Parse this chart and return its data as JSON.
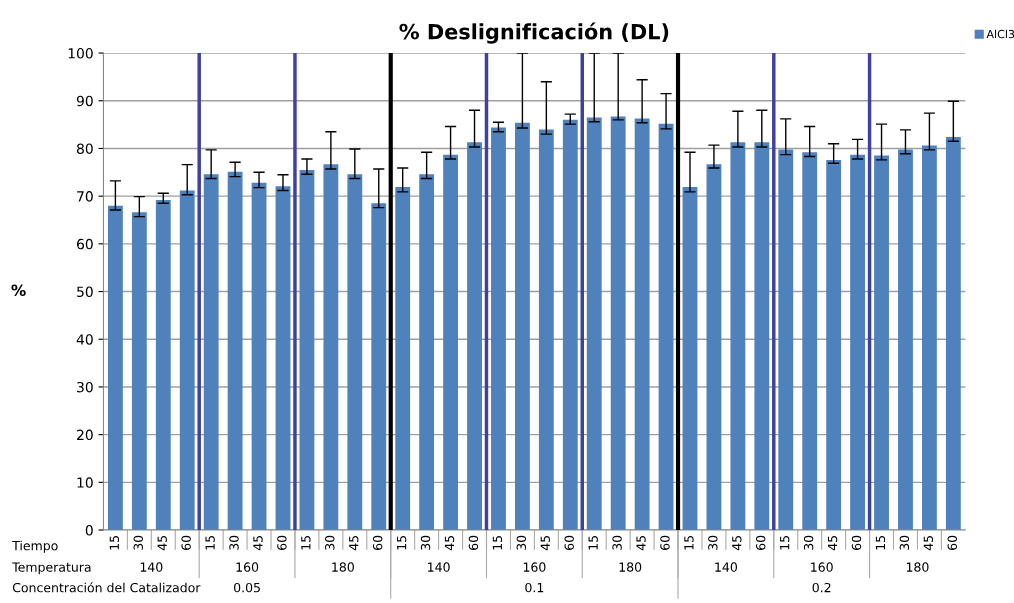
{
  "chart_data": {
    "type": "bar",
    "title": "% Deslignificación (DL)",
    "ylabel": "%",
    "categories": [
      "15",
      "30",
      "45",
      "60",
      "15",
      "30",
      "45",
      "60",
      "15",
      "30",
      "45",
      "60",
      "15",
      "30",
      "45",
      "60",
      "15",
      "30",
      "45",
      "60",
      "15",
      "30",
      "45",
      "60",
      "15",
      "30",
      "45",
      "60",
      "15",
      "30",
      "45",
      "60",
      "15",
      "30",
      "45",
      "60"
    ],
    "series": [
      {
        "name": "AlCl3",
        "color": "#4f81bd",
        "values": [
          68.0,
          66.6,
          69.2,
          71.2,
          74.6,
          75.1,
          72.8,
          72.1,
          75.5,
          76.7,
          74.6,
          68.5,
          71.9,
          74.6,
          78.7,
          81.3,
          84.4,
          85.4,
          84.0,
          86.0,
          86.5,
          86.7,
          86.3,
          85.2,
          71.9,
          76.7,
          81.3,
          81.3,
          79.8,
          79.2,
          77.6,
          78.7,
          78.5,
          79.8,
          80.6,
          82.4
        ],
        "errors": [
          [
            67.1,
            73.2
          ],
          [
            65.7,
            69.9
          ],
          [
            68.5,
            70.6
          ],
          [
            70.3,
            76.6
          ],
          [
            73.7,
            79.7
          ],
          [
            74.1,
            77.1
          ],
          [
            71.8,
            75.0
          ],
          [
            71.2,
            74.5
          ],
          [
            74.6,
            77.8
          ],
          [
            75.7,
            83.5
          ],
          [
            73.7,
            79.9
          ],
          [
            67.6,
            75.7
          ],
          [
            70.9,
            75.9
          ],
          [
            73.7,
            79.2
          ],
          [
            77.8,
            84.6
          ],
          [
            80.3,
            88.0
          ],
          [
            83.5,
            85.5
          ],
          [
            84.3,
            100
          ],
          [
            83.0,
            94.0
          ],
          [
            85.1,
            87.2
          ],
          [
            85.6,
            100
          ],
          [
            86.0,
            100
          ],
          [
            85.4,
            94.4
          ],
          [
            84.1,
            91.5
          ],
          [
            70.9,
            79.2
          ],
          [
            75.9,
            80.7
          ],
          [
            80.3,
            87.8
          ],
          [
            80.3,
            88.0
          ],
          [
            78.7,
            86.2
          ],
          [
            78.3,
            84.6
          ],
          [
            76.9,
            81.0
          ],
          [
            77.8,
            81.9
          ],
          [
            77.6,
            85.1
          ],
          [
            78.9,
            83.9
          ],
          [
            79.7,
            87.4
          ],
          [
            81.5,
            89.9
          ]
        ]
      }
    ],
    "annotations": [
      "Tiempo",
      "Temperatura",
      "Concentración del Catalizador",
      "140",
      "160",
      "180",
      "140",
      "160",
      "180",
      "140",
      "160",
      "180",
      "0.05",
      "0.1",
      "0.2"
    ],
    "ylim": [
      0,
      100
    ],
    "yticks": [
      0,
      10,
      20,
      30,
      40,
      50,
      60,
      70,
      80,
      90,
      100
    ],
    "grid": "y",
    "legend": "top right"
  }
}
